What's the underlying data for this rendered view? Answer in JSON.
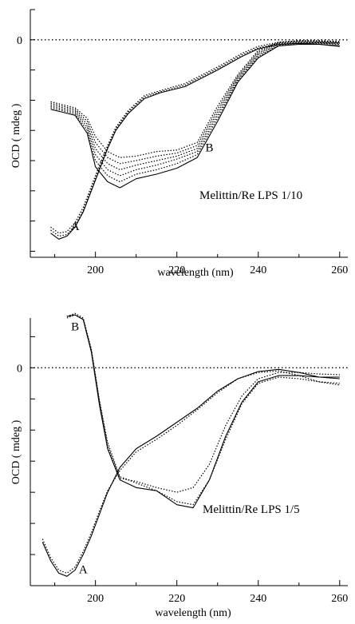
{
  "chart_data": [
    {
      "type": "line",
      "title": "",
      "xlabel": "wavelength (nm)",
      "ylabel": "OCD ( mdeg )",
      "xlim": [
        184,
        262
      ],
      "ylim": [
        -7.2,
        1.0
      ],
      "x_ticks": [
        200,
        220,
        240,
        260
      ],
      "y_tick_labels": [
        {
          "value": 0,
          "label": "0"
        }
      ],
      "zero_line": true,
      "annotation": "Melittin/Re LPS  1/10",
      "curve_labels": [
        {
          "text": "A",
          "x": 195,
          "y": -6.3
        },
        {
          "text": "B",
          "x": 228,
          "y": -3.7
        }
      ],
      "series": [
        {
          "label": "A",
          "style": "solid",
          "x": [
            189,
            191,
            193,
            195,
            197,
            199,
            201,
            203,
            205,
            208,
            212,
            216,
            222,
            230,
            236,
            240,
            245,
            250,
            255,
            260
          ],
          "y": [
            -6.4,
            -6.6,
            -6.5,
            -6.2,
            -5.7,
            -5.0,
            -4.3,
            -3.6,
            -3.0,
            -2.45,
            -1.95,
            -1.75,
            -1.55,
            -1.0,
            -0.55,
            -0.3,
            -0.15,
            -0.12,
            -0.15,
            -0.22
          ]
        },
        {
          "label": "A",
          "style": "dotted",
          "x": [
            189,
            191,
            193,
            195,
            197,
            199,
            201,
            203,
            205,
            208,
            212,
            216,
            222,
            230,
            236,
            240,
            245,
            250,
            255,
            260
          ],
          "y": [
            -6.3,
            -6.5,
            -6.45,
            -6.15,
            -5.65,
            -4.95,
            -4.25,
            -3.55,
            -2.95,
            -2.4,
            -1.9,
            -1.72,
            -1.5,
            -0.95,
            -0.5,
            -0.27,
            -0.12,
            -0.08,
            -0.1,
            -0.15
          ]
        },
        {
          "label": "A",
          "style": "dotted",
          "x": [
            189,
            191,
            193,
            195,
            197,
            199,
            201,
            203,
            205,
            208,
            212,
            216,
            222,
            230,
            236,
            240,
            245,
            250,
            255,
            260
          ],
          "y": [
            -6.2,
            -6.4,
            -6.35,
            -6.05,
            -5.55,
            -4.85,
            -4.15,
            -3.5,
            -2.9,
            -2.35,
            -1.85,
            -1.68,
            -1.45,
            -0.9,
            -0.45,
            -0.22,
            -0.08,
            -0.04,
            -0.06,
            -0.1
          ]
        },
        {
          "label": "B",
          "style": "solid",
          "x": [
            189,
            192,
            195,
            198,
            200,
            203,
            206,
            210,
            215,
            220,
            225,
            230,
            235,
            240,
            245,
            250,
            255,
            260
          ],
          "y": [
            -2.3,
            -2.4,
            -2.5,
            -3.1,
            -4.2,
            -4.7,
            -4.9,
            -4.6,
            -4.45,
            -4.25,
            -3.9,
            -2.7,
            -1.4,
            -0.6,
            -0.2,
            -0.15,
            -0.15,
            -0.2
          ]
        },
        {
          "label": "B",
          "style": "dotted",
          "x": [
            189,
            192,
            195,
            198,
            200,
            203,
            206,
            210,
            215,
            220,
            225,
            230,
            235,
            240,
            245,
            250,
            255,
            260
          ],
          "y": [
            -2.25,
            -2.35,
            -2.45,
            -3.0,
            -4.0,
            -4.5,
            -4.7,
            -4.45,
            -4.3,
            -4.1,
            -3.8,
            -2.6,
            -1.35,
            -0.55,
            -0.18,
            -0.12,
            -0.12,
            -0.15
          ]
        },
        {
          "label": "B",
          "style": "dotted",
          "x": [
            189,
            192,
            195,
            198,
            200,
            203,
            206,
            210,
            215,
            220,
            225,
            230,
            235,
            240,
            245,
            250,
            255,
            260
          ],
          "y": [
            -2.2,
            -2.3,
            -2.4,
            -2.9,
            -3.8,
            -4.3,
            -4.5,
            -4.3,
            -4.15,
            -3.95,
            -3.7,
            -2.5,
            -1.3,
            -0.5,
            -0.15,
            -0.1,
            -0.1,
            -0.12
          ]
        },
        {
          "label": "B",
          "style": "dotted",
          "x": [
            189,
            192,
            195,
            198,
            200,
            203,
            206,
            210,
            215,
            220,
            225,
            230,
            235,
            240,
            245,
            250,
            255,
            260
          ],
          "y": [
            -2.15,
            -2.25,
            -2.35,
            -2.8,
            -3.6,
            -4.1,
            -4.3,
            -4.15,
            -4.0,
            -3.85,
            -3.6,
            -2.4,
            -1.25,
            -0.45,
            -0.12,
            -0.08,
            -0.08,
            -0.1
          ]
        },
        {
          "label": "B",
          "style": "dotted",
          "x": [
            189,
            192,
            195,
            198,
            200,
            203,
            206,
            210,
            215,
            220,
            225,
            230,
            235,
            240,
            245,
            250,
            255,
            260
          ],
          "y": [
            -2.1,
            -2.2,
            -2.3,
            -2.7,
            -3.4,
            -3.9,
            -4.1,
            -4.0,
            -3.85,
            -3.75,
            -3.5,
            -2.3,
            -1.2,
            -0.4,
            -0.1,
            -0.05,
            -0.05,
            -0.08
          ]
        },
        {
          "label": "B",
          "style": "dotted",
          "x": [
            189,
            192,
            195,
            198,
            200,
            203,
            206,
            210,
            215,
            220,
            225,
            230,
            235,
            240,
            245,
            250,
            255,
            260
          ],
          "y": [
            -2.05,
            -2.15,
            -2.25,
            -2.6,
            -3.2,
            -3.7,
            -3.9,
            -3.85,
            -3.7,
            -3.65,
            -3.4,
            -2.2,
            -1.15,
            -0.35,
            -0.08,
            -0.03,
            -0.03,
            -0.05
          ]
        }
      ]
    },
    {
      "type": "line",
      "title": "",
      "xlabel": "wavelength (nm)",
      "ylabel": "OCD ( mdeg )",
      "xlim": [
        184,
        262
      ],
      "ylim": [
        -7.0,
        1.6
      ],
      "x_ticks": [
        200,
        220,
        240,
        260
      ],
      "y_tick_labels": [
        {
          "value": 0,
          "label": "0"
        }
      ],
      "zero_line": true,
      "annotation": "Melittin/Re LPS  1/5",
      "curve_labels": [
        {
          "text": "B",
          "x": 195,
          "y": 1.2
        },
        {
          "text": "A",
          "x": 197,
          "y": -6.6
        }
      ],
      "series": [
        {
          "label": "A",
          "style": "solid",
          "x": [
            187,
            189,
            191,
            193,
            195,
            197,
            199,
            201,
            203,
            206,
            210,
            215,
            220,
            225,
            230,
            235,
            240,
            245,
            250,
            255,
            260
          ],
          "y": [
            -5.6,
            -6.2,
            -6.6,
            -6.7,
            -6.5,
            -6.0,
            -5.4,
            -4.7,
            -4.0,
            -3.2,
            -2.6,
            -2.2,
            -1.75,
            -1.3,
            -0.75,
            -0.35,
            -0.12,
            -0.05,
            -0.15,
            -0.3,
            -0.35
          ]
        },
        {
          "label": "A",
          "style": "dotted",
          "x": [
            187,
            189,
            191,
            193,
            195,
            197,
            199,
            201,
            203,
            206,
            210,
            215,
            220,
            225,
            230,
            235,
            240,
            245,
            250,
            255,
            260
          ],
          "y": [
            -5.5,
            -6.1,
            -6.5,
            -6.6,
            -6.4,
            -5.9,
            -5.3,
            -4.6,
            -3.95,
            -3.3,
            -2.7,
            -2.3,
            -1.85,
            -1.35,
            -0.8,
            -0.35,
            -0.15,
            -0.1,
            -0.25,
            -0.45,
            -0.55
          ]
        },
        {
          "label": "B",
          "style": "solid",
          "x": [
            193,
            195,
            197,
            199,
            201,
            203,
            206,
            210,
            215,
            220,
            224,
            228,
            232,
            236,
            240,
            245,
            250,
            255,
            260
          ],
          "y": [
            1.65,
            1.7,
            1.55,
            0.5,
            -1.2,
            -2.6,
            -3.6,
            -3.85,
            -3.95,
            -4.4,
            -4.5,
            -3.6,
            -2.2,
            -1.1,
            -0.45,
            -0.25,
            -0.25,
            -0.3,
            -0.3
          ]
        },
        {
          "label": "B",
          "style": "dotted",
          "x": [
            193,
            195,
            197,
            199,
            201,
            203,
            206,
            210,
            215,
            220,
            224,
            228,
            232,
            236,
            240,
            245,
            250,
            255,
            260
          ],
          "y": [
            1.65,
            1.75,
            1.6,
            0.6,
            -1.05,
            -2.4,
            -3.5,
            -3.7,
            -3.95,
            -4.3,
            -4.4,
            -3.6,
            -2.3,
            -1.15,
            -0.5,
            -0.3,
            -0.35,
            -0.45,
            -0.5
          ]
        },
        {
          "label": "B",
          "style": "dotted",
          "x": [
            193,
            195,
            197,
            199,
            201,
            203,
            206,
            210,
            215,
            220,
            224,
            228,
            232,
            236,
            240,
            245,
            250,
            255,
            260
          ],
          "y": [
            1.6,
            1.7,
            1.55,
            0.55,
            -1.1,
            -2.5,
            -3.55,
            -3.65,
            -3.85,
            -4.0,
            -3.85,
            -3.1,
            -1.85,
            -0.9,
            -0.35,
            -0.15,
            -0.15,
            -0.2,
            -0.22
          ]
        }
      ]
    }
  ]
}
